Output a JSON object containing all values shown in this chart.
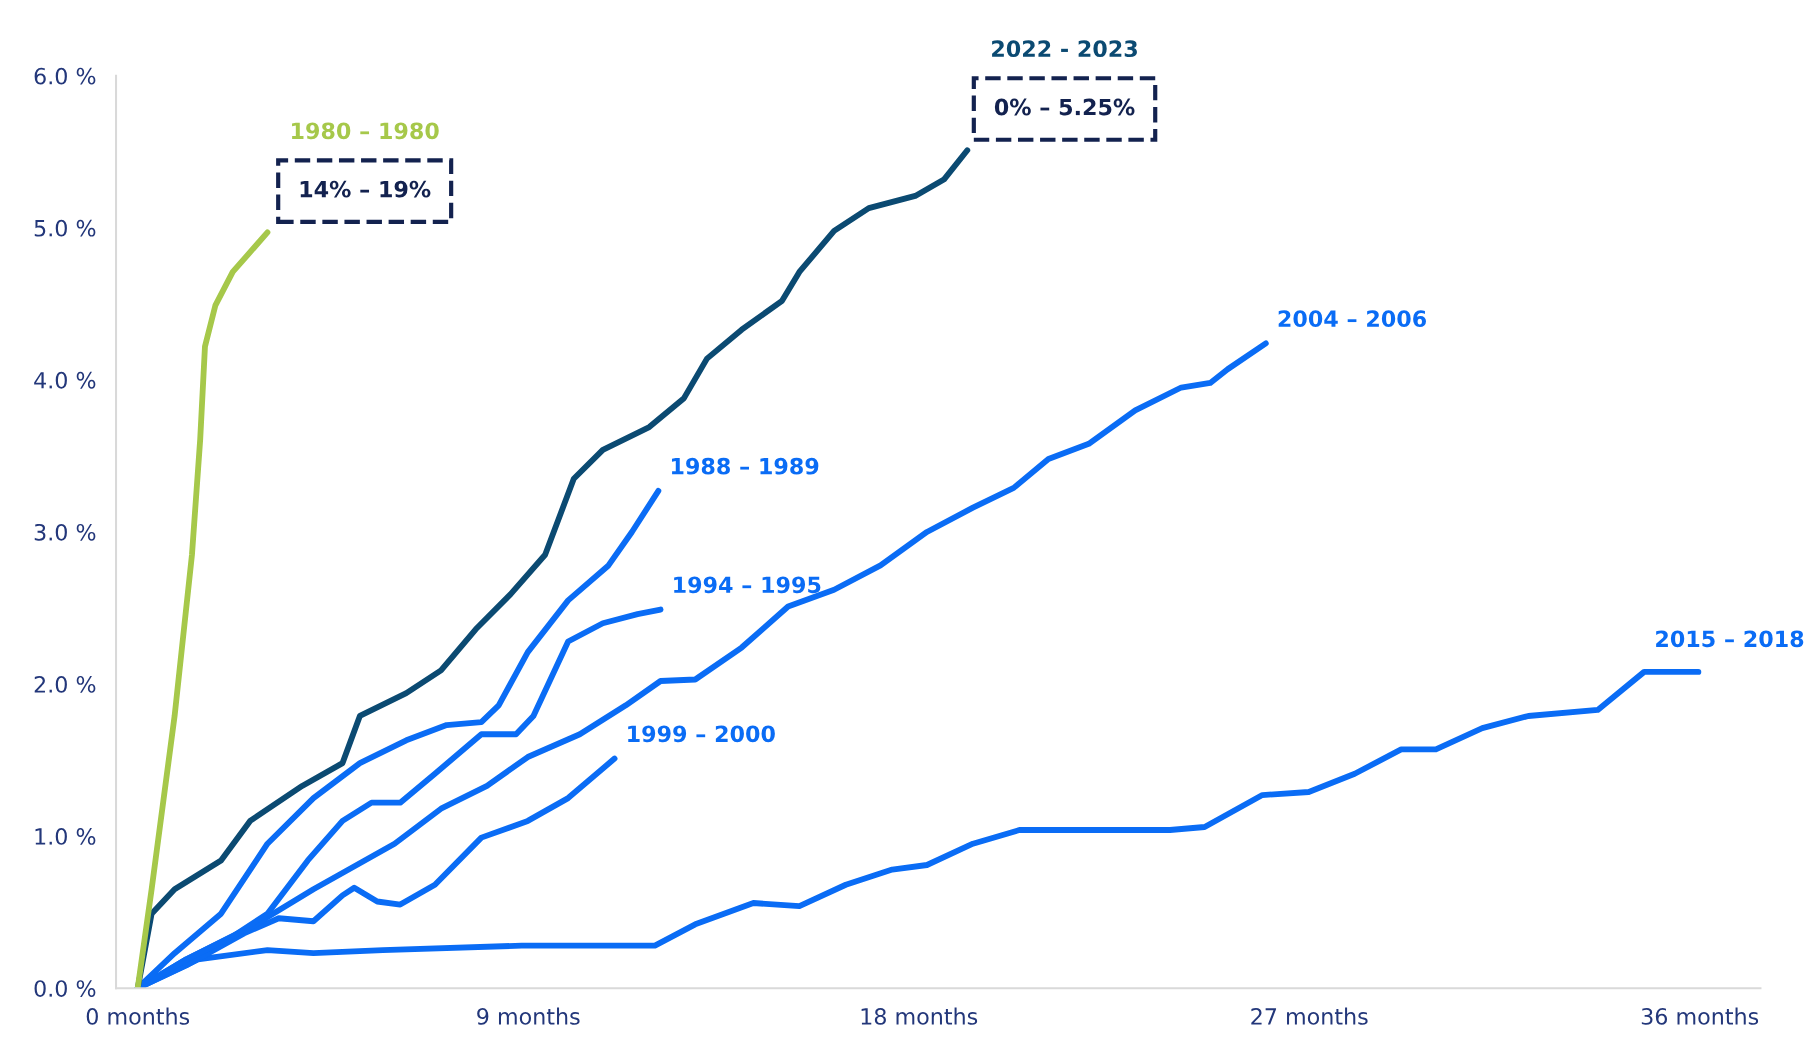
{
  "chart_data": {
    "type": "line",
    "xlim": [
      -0.5,
      37.4
    ],
    "ylim": [
      0,
      6.0
    ],
    "xticks": [
      {
        "value": 0,
        "label": "0 months"
      },
      {
        "value": 9,
        "label": "9 months"
      },
      {
        "value": 18,
        "label": "18 months"
      },
      {
        "value": 27,
        "label": "27 months"
      },
      {
        "value": 36,
        "label": "36 months"
      }
    ],
    "yticks": [
      {
        "value": 0,
        "label": "0.0 %"
      },
      {
        "value": 1,
        "label": "1.0 %"
      },
      {
        "value": 2,
        "label": "2.0 %"
      },
      {
        "value": 3,
        "label": "3.0 %"
      },
      {
        "value": 4,
        "label": "4.0 %"
      },
      {
        "value": 5,
        "label": "5.0 %"
      },
      {
        "value": 6,
        "label": "6.0 %"
      }
    ],
    "grid": false,
    "legend": false,
    "marker": "none",
    "line_style": "solid",
    "series": [
      {
        "name": "2015 – 2018",
        "color": "#0a6cf5",
        "x": [
          0,
          1.39,
          2.99,
          4.05,
          5.65,
          8.85,
          11.92,
          12.85,
          14.19,
          15.25,
          16.32,
          17.39,
          18.19,
          19.25,
          20.32,
          21.92,
          23.79,
          24.59,
          25.92,
          26.99,
          28.05,
          29.12,
          29.92,
          30.99,
          32.05,
          33.65,
          34.72,
          35.97
        ],
        "values": [
          0,
          0.19,
          0.25,
          0.23,
          0.25,
          0.28,
          0.28,
          0.42,
          0.56,
          0.54,
          0.68,
          0.78,
          0.81,
          0.95,
          1.04,
          1.04,
          1.04,
          1.06,
          1.27,
          1.29,
          1.41,
          1.57,
          1.57,
          1.71,
          1.79,
          1.83,
          2.08,
          2.08
        ]
      },
      {
        "name": "1999 – 2000",
        "color": "#0a6cf5",
        "x": [
          0,
          1.12,
          2.45,
          3.25,
          4.05,
          4.72,
          4.99,
          5.52,
          6.05,
          6.85,
          7.92,
          8.99,
          9.92,
          10.99
        ],
        "values": [
          0,
          0.15,
          0.36,
          0.46,
          0.44,
          0.61,
          0.66,
          0.57,
          0.55,
          0.68,
          0.99,
          1.1,
          1.25,
          1.51
        ]
      },
      {
        "name": "2004 – 2006",
        "color": "#0a6cf5",
        "x": [
          0,
          1.12,
          2.72,
          4.05,
          5.92,
          6.99,
          8.05,
          8.99,
          10.19,
          11.25,
          12.05,
          12.85,
          13.92,
          14.99,
          16.05,
          17.12,
          18.19,
          19.25,
          20.19,
          20.99,
          21.92,
          22.99,
          24.05,
          24.72,
          25.12,
          26.0
        ],
        "values": [
          0,
          0.19,
          0.42,
          0.65,
          0.95,
          1.18,
          1.33,
          1.52,
          1.67,
          1.86,
          2.02,
          2.03,
          2.24,
          2.51,
          2.62,
          2.78,
          3.0,
          3.16,
          3.29,
          3.48,
          3.58,
          3.8,
          3.95,
          3.98,
          4.07,
          4.24
        ]
      },
      {
        "name": "1994 – 1995",
        "color": "#0a6cf5",
        "x": [
          0,
          1.12,
          2.19,
          2.99,
          3.92,
          4.72,
          5.39,
          6.05,
          6.85,
          7.92,
          8.72,
          9.12,
          9.92,
          10.72,
          11.52,
          12.05
        ],
        "values": [
          0,
          0.19,
          0.34,
          0.49,
          0.84,
          1.1,
          1.22,
          1.22,
          1.41,
          1.67,
          1.67,
          1.79,
          2.28,
          2.4,
          2.46,
          2.49
        ]
      },
      {
        "name": "1988 – 1989",
        "color": "#0a6cf5",
        "x": [
          0,
          0.85,
          1.92,
          2.99,
          4.05,
          5.12,
          6.19,
          7.12,
          7.92,
          8.32,
          8.99,
          9.92,
          10.85,
          11.39,
          12.0
        ],
        "values": [
          0,
          0.23,
          0.49,
          0.95,
          1.25,
          1.48,
          1.63,
          1.73,
          1.75,
          1.86,
          2.21,
          2.55,
          2.78,
          3.0,
          3.27
        ]
      },
      {
        "name": "2022 - 2023",
        "color": "#0b4a72",
        "x": [
          0,
          0.32,
          0.85,
          1.92,
          2.59,
          3.79,
          4.72,
          5.12,
          6.19,
          6.99,
          7.79,
          8.59,
          9.39,
          10.05,
          10.72,
          11.79,
          12.59,
          13.12,
          13.92,
          14.85,
          15.25,
          16.05,
          16.85,
          17.92,
          18.59,
          19.12
        ],
        "values": [
          0,
          0.49,
          0.65,
          0.84,
          1.1,
          1.33,
          1.48,
          1.79,
          1.94,
          2.09,
          2.36,
          2.59,
          2.85,
          3.35,
          3.54,
          3.69,
          3.88,
          4.14,
          4.33,
          4.52,
          4.71,
          4.98,
          5.13,
          5.21,
          5.32,
          5.51
        ]
      },
      {
        "name": "1980 – 1980",
        "color": "#a6c84a",
        "x": [
          0,
          0.32,
          0.85,
          1.25,
          1.44,
          1.55,
          1.79,
          2.19,
          2.99
        ],
        "values": [
          0,
          0.65,
          1.79,
          2.85,
          3.61,
          4.22,
          4.49,
          4.71,
          4.97
        ]
      }
    ],
    "annotations": [
      {
        "text": "0% – 5.25%",
        "x": 19.12,
        "y": 5.51
      },
      {
        "text": "14% – 19%",
        "x": 2.99,
        "y": 4.97
      }
    ]
  }
}
